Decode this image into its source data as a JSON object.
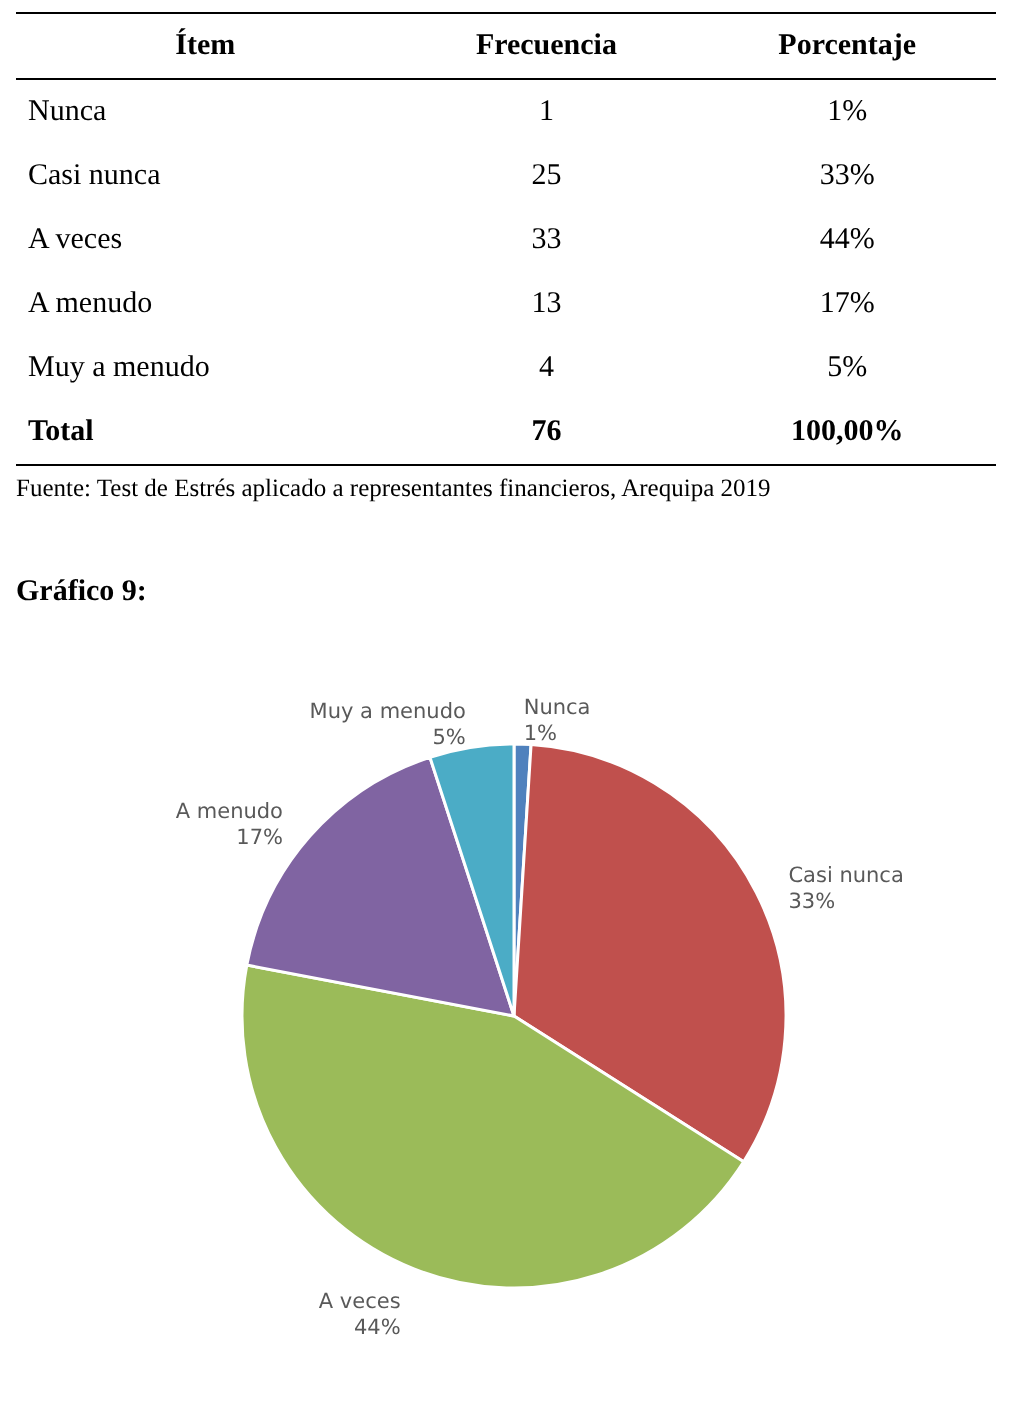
{
  "chart_data": {
    "type": "pie",
    "title": "Gráfico 9:",
    "categories": [
      "Nunca",
      "Casi nunca",
      "A veces",
      "A menudo",
      "Muy a menudo"
    ],
    "values": [
      1,
      33,
      44,
      17,
      5
    ],
    "value_labels": [
      "1%",
      "33%",
      "44%",
      "17%",
      "5%"
    ],
    "colors": [
      "#4f81bd",
      "#c0504d",
      "#9bbb59",
      "#8064a2",
      "#4bacc6"
    ],
    "annotations": [
      "Ítem",
      "Frecuencia",
      "Porcentaje",
      "Nunca",
      "1",
      "1%",
      "Casi nunca",
      "25",
      "33%",
      "A veces",
      "33",
      "44%",
      "A menudo",
      "13",
      "17%",
      "Muy a menudo",
      "4",
      "5%",
      "Total",
      "76",
      "100,00%",
      "Fuente: Test de Estrés aplicado a representantes financieros, Arequipa 2019"
    ]
  }
}
